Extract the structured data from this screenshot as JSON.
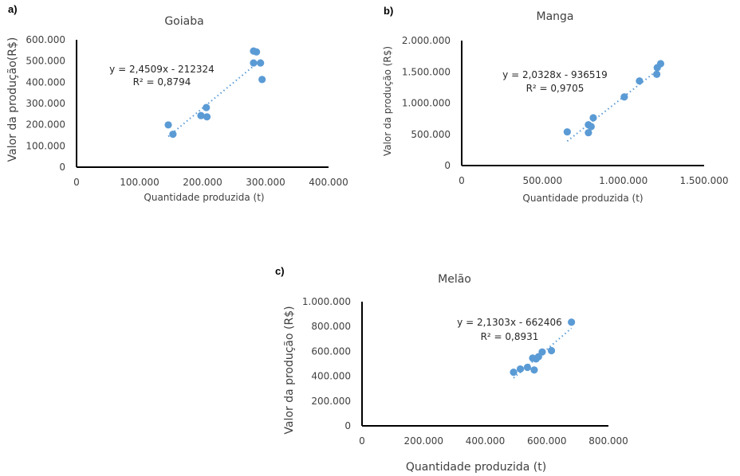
{
  "chart_data": [
    {
      "type": "scatter",
      "panel_label": "a)",
      "title": "Goiaba",
      "xlabel": "Quantidade produzida (t)",
      "ylabel": "Valor da produção(R$)",
      "xlim": [
        0,
        400000
      ],
      "ylim": [
        0,
        600000
      ],
      "xticks": [
        0,
        100000,
        200000,
        300000,
        400000
      ],
      "xtick_labels": [
        "0",
        "100.000",
        "200.000",
        "300.000",
        "400.000"
      ],
      "yticks": [
        0,
        100000,
        200000,
        300000,
        400000,
        500000,
        600000
      ],
      "ytick_labels": [
        "0",
        "100.000",
        "200.000",
        "300.000",
        "400.000",
        "500.000",
        "600.000"
      ],
      "grid": false,
      "series": [
        {
          "name": "Goiaba",
          "color": "#5B9BD5",
          "points": [
            [
              145600,
              199000
            ],
            [
              153000,
              155000
            ],
            [
              197500,
              243000
            ],
            [
              206000,
              281000
            ],
            [
              207000,
              237000
            ],
            [
              281000,
              547000
            ],
            [
              285600,
              543000
            ],
            [
              281000,
              491000
            ],
            [
              292000,
              491000
            ],
            [
              294500,
              413000
            ]
          ]
        }
      ],
      "trendline": {
        "type": "linear",
        "slope": 2.4509,
        "intercept": -212324,
        "x_range": [
          145600,
          294500
        ],
        "style": "dotted",
        "equation_label": "y = 2,4509x - 212324",
        "r2_label": "R² = 0,8794"
      }
    },
    {
      "type": "scatter",
      "panel_label": "b)",
      "title": "Manga",
      "xlabel": "Quantidade produzida (t)",
      "ylabel": "Valor da produção (R$)",
      "xlim": [
        0,
        1500000
      ],
      "ylim": [
        0,
        2000000
      ],
      "xticks": [
        0,
        500000,
        1000000,
        1500000
      ],
      "xtick_labels": [
        "0",
        "500.000",
        "1.000.000",
        "1.500.000"
      ],
      "yticks": [
        0,
        500000,
        1000000,
        1500000,
        2000000
      ],
      "ytick_labels": [
        "0",
        "500.000",
        "1.000.000",
        "1.500.000",
        "2.000.000"
      ],
      "grid": false,
      "series": [
        {
          "name": "Manga",
          "color": "#5B9BD5",
          "points": [
            [
              653000,
              539000
            ],
            [
              784000,
              653000
            ],
            [
              801000,
              624000
            ],
            [
              784000,
              526000
            ],
            [
              814000,
              764000
            ],
            [
              1006000,
              1099000
            ],
            [
              1100000,
              1354000
            ],
            [
              1207000,
              1461000
            ],
            [
              1210000,
              1567000
            ],
            [
              1231000,
              1631000
            ]
          ]
        }
      ],
      "trendline": {
        "type": "linear",
        "slope": 2.0328,
        "intercept": -936519,
        "x_range": [
          653000,
          1231000
        ],
        "style": "dotted",
        "equation_label": "y = 2,0328x - 936519",
        "r2_label": "R² = 0,9705"
      }
    },
    {
      "type": "scatter",
      "panel_label": "c)",
      "title": "Melão",
      "xlabel": "Quantidade produzida (t)",
      "ylabel": "Valor da produção (R$)",
      "xlim": [
        0,
        800000
      ],
      "ylim": [
        0,
        1000000
      ],
      "xticks": [
        0,
        200000,
        400000,
        600000,
        800000
      ],
      "xtick_labels": [
        "0",
        "200.000",
        "400.000",
        "600.000",
        "800.000"
      ],
      "yticks": [
        0,
        200000,
        400000,
        600000,
        800000,
        1000000
      ],
      "ytick_labels": [
        "0",
        "200.000",
        "400.000",
        "600.000",
        "800.000",
        "1.000.000"
      ],
      "grid": false,
      "series": [
        {
          "name": "Melão",
          "color": "#5B9BD5",
          "points": [
            [
              492000,
              432000
            ],
            [
              514000,
              458000
            ],
            [
              537000,
              471000
            ],
            [
              559000,
              450000
            ],
            [
              554000,
              546000
            ],
            [
              565000,
              539000
            ],
            [
              573000,
              557000
            ],
            [
              585000,
              595000
            ],
            [
              615000,
              606000
            ],
            [
              680000,
              835000
            ]
          ]
        }
      ],
      "trendline": {
        "type": "linear",
        "slope": 2.1303,
        "intercept": -662406,
        "x_range": [
          492000,
          680000
        ],
        "style": "dotted",
        "equation_label": "y = 2,1303x - 662406",
        "r2_label": "R² = 0,8931"
      }
    }
  ]
}
